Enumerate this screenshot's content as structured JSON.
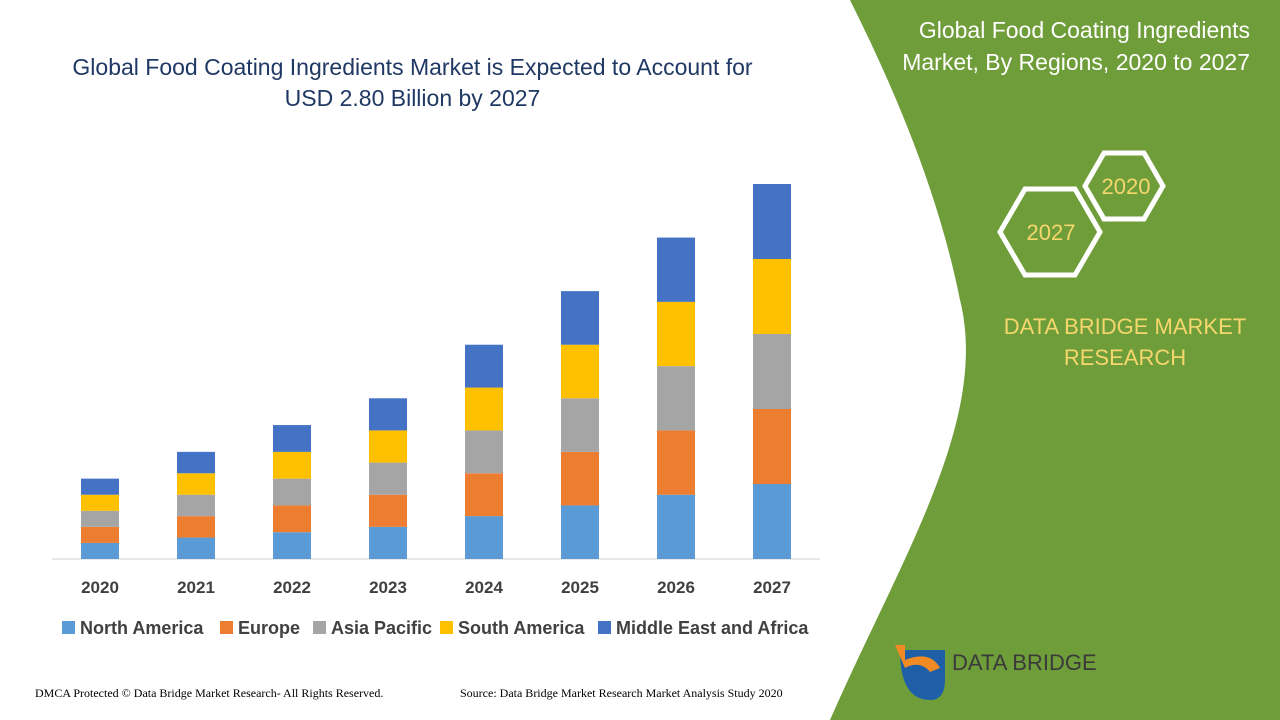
{
  "chart_data": {
    "type": "stacked-bar",
    "title": "Global Food Coating Ingredients Market is Expected to Account for USD 2.80 Billion by 2027",
    "categories": [
      "2020",
      "2021",
      "2022",
      "2023",
      "2024",
      "2025",
      "2026",
      "2027"
    ],
    "series": [
      {
        "name": "North America",
        "color": "#5b9bd5",
        "values": [
          0.12,
          0.16,
          0.2,
          0.24,
          0.32,
          0.4,
          0.48,
          0.56
        ]
      },
      {
        "name": "Europe",
        "color": "#ed7d31",
        "values": [
          0.12,
          0.16,
          0.2,
          0.24,
          0.32,
          0.4,
          0.48,
          0.56
        ]
      },
      {
        "name": "Asia Pacific",
        "color": "#a5a5a5",
        "values": [
          0.12,
          0.16,
          0.2,
          0.24,
          0.32,
          0.4,
          0.48,
          0.56
        ]
      },
      {
        "name": "South America",
        "color": "#ffc000",
        "values": [
          0.12,
          0.16,
          0.2,
          0.24,
          0.32,
          0.4,
          0.48,
          0.56
        ]
      },
      {
        "name": "Middle East and Africa",
        "color": "#4472c4",
        "values": [
          0.12,
          0.16,
          0.2,
          0.24,
          0.32,
          0.4,
          0.48,
          0.56
        ]
      }
    ]
  },
  "panel": {
    "title": "Global Food Coating Ingredients Market, By Regions, 2020 to 2027",
    "hexagons": [
      "2020",
      "2027"
    ],
    "brand": "DATA BRIDGE MARKET RESEARCH",
    "logo": "DATA BRIDGE"
  },
  "footer": {
    "left": "DMCA Protected © Data Bridge Market Research- All Rights Reserved.",
    "right": "Source: Data Bridge Market Research Market Analysis Study 2020"
  }
}
